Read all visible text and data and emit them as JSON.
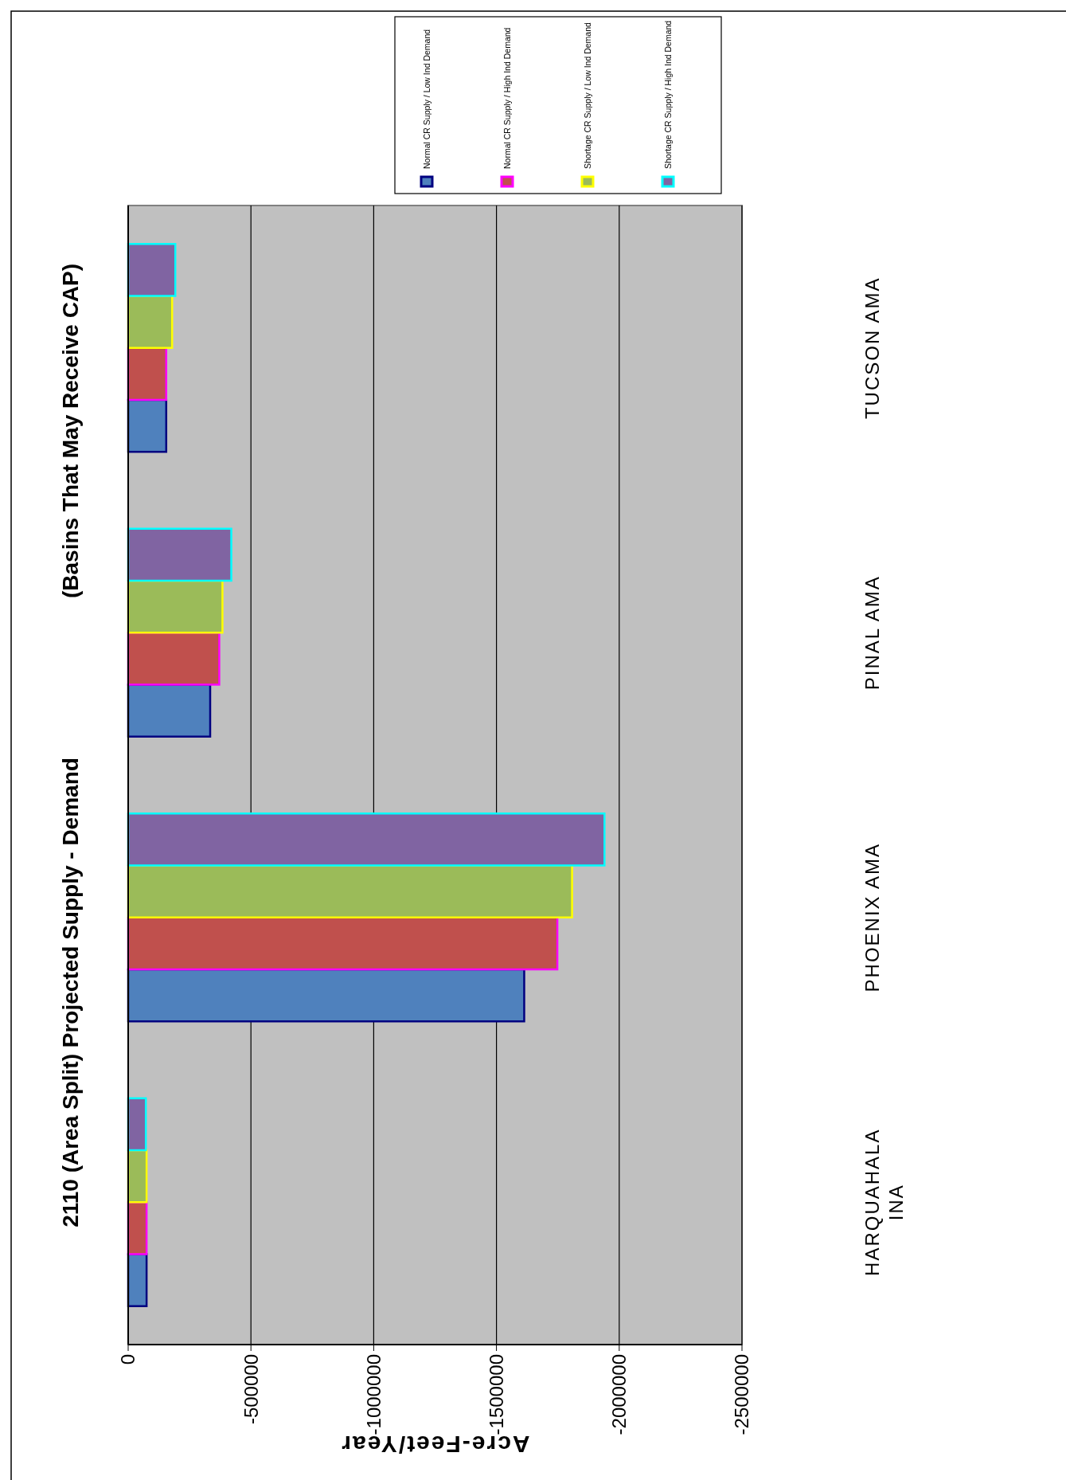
{
  "chart_data": {
    "type": "bar",
    "orientation": "horizontal",
    "title": "2110 (Area Split) Projected Supply - Demand",
    "subtitle": "(Basins That May Receive CAP)",
    "xlabel": "Acre-Feet/Year",
    "categories": [
      "TUCSON AMA",
      "PINAL AMA",
      "PHOENIX AMA",
      "HARQUAHALA INA"
    ],
    "series": [
      {
        "name": "Normal CR Supply / Low Ind Demand",
        "color": "#4f81bd",
        "values": [
          -155000,
          -334000,
          -1613000,
          -75000
        ]
      },
      {
        "name": "Normal CR Supply / High Ind Demand",
        "color": "#c0504d",
        "values": [
          -155000,
          -371000,
          -1748000,
          -75000
        ]
      },
      {
        "name": "Shortage CR Supply / Low Ind Demand",
        "color": "#9bbb59",
        "values": [
          -179000,
          -384000,
          -1808000,
          -75000
        ]
      },
      {
        "name": "Shortage CR Supply / High Ind Demand",
        "color": "#8064a2",
        "values": [
          -192000,
          -420000,
          -1940000,
          -72000
        ]
      }
    ],
    "xlim": [
      0,
      -2500000
    ],
    "xticks": [
      0,
      -500000,
      -1000000,
      -1500000,
      -2000000,
      -2500000
    ],
    "grid": "x",
    "legend": "top"
  }
}
